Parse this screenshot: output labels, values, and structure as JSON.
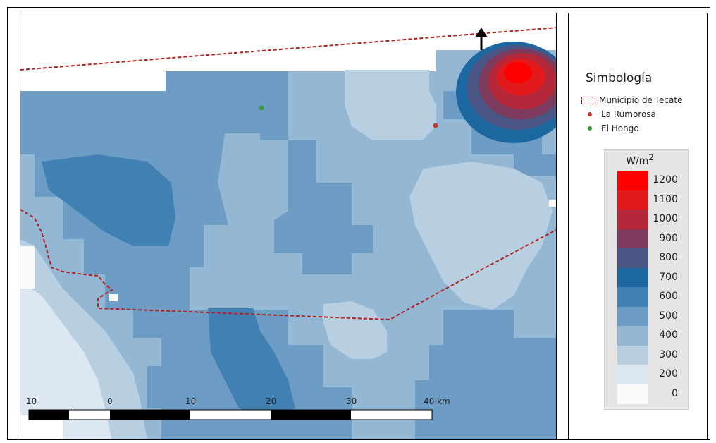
{
  "legend": {
    "title": "Simbología",
    "items": [
      {
        "label": "Municipio de Tecate",
        "symbol": "dashed-polygon",
        "color": "#b22222"
      },
      {
        "label": "La Rumorosa",
        "symbol": "point",
        "color": "#c0392b"
      },
      {
        "label": "El Hongo",
        "symbol": "point",
        "color": "#3a9a3a"
      }
    ],
    "unit": "W/m",
    "unit_exponent": "2",
    "classes": [
      {
        "label": "1200",
        "color": "#ff0000"
      },
      {
        "label": "1100",
        "color": "#e31a1c"
      },
      {
        "label": "1000",
        "color": "#b5283a"
      },
      {
        "label": "900",
        "color": "#7c3a5c"
      },
      {
        "label": "800",
        "color": "#4a5585"
      },
      {
        "label": "700",
        "color": "#1c67a0"
      },
      {
        "label": "600",
        "color": "#4180b2"
      },
      {
        "label": "500",
        "color": "#6d9cc4"
      },
      {
        "label": "400",
        "color": "#94b7d4"
      },
      {
        "label": "300",
        "color": "#b8cfe2"
      },
      {
        "label": "200",
        "color": "#dce7f1"
      },
      {
        "label": "0",
        "color": "#fafafa"
      }
    ]
  },
  "scalebar": {
    "labels": [
      "10",
      "0",
      "10",
      "20",
      "30",
      "40 km"
    ]
  },
  "map": {
    "north_arrow": "north-arrow-icon",
    "places": [
      {
        "name": "La Rumorosa",
        "color": "#c0392b"
      },
      {
        "name": "El Hongo",
        "color": "#3a9a3a"
      }
    ],
    "boundary_color": "#b22222"
  }
}
